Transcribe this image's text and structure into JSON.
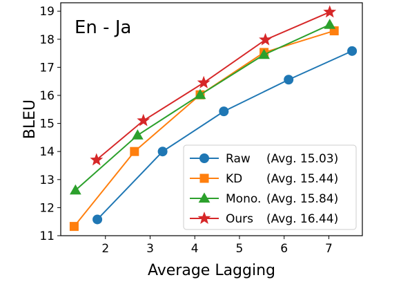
{
  "chart_data": {
    "type": "line",
    "title": "En - Ja",
    "xlabel": "Average Lagging",
    "ylabel": "BLEU",
    "xlim": [
      1,
      7.75
    ],
    "ylim": [
      11,
      19.3
    ],
    "xticks": [
      2,
      3,
      4,
      5,
      6,
      7
    ],
    "yticks": [
      11,
      12,
      13,
      14,
      15,
      16,
      17,
      18,
      19
    ],
    "grid": false,
    "legend_position": "lower-right",
    "series": [
      {
        "name": "Raw",
        "avg_label": "(Avg. 15.03)",
        "color": "#1f77b4",
        "marker": "circle",
        "x": [
          1.82,
          3.28,
          4.65,
          6.1,
          7.52
        ],
        "y": [
          11.58,
          14.0,
          15.43,
          16.56,
          17.58
        ]
      },
      {
        "name": "KD",
        "avg_label": "(Avg. 15.44)",
        "color": "#ff7f0e",
        "marker": "square",
        "x": [
          1.3,
          2.65,
          4.12,
          5.55,
          7.12
        ],
        "y": [
          11.33,
          14.0,
          16.02,
          17.53,
          18.3
        ]
      },
      {
        "name": "Mono.",
        "avg_label": "(Avg. 15.84)",
        "color": "#2ca02c",
        "marker": "triangle",
        "x": [
          1.33,
          2.72,
          4.12,
          5.55,
          7.02
        ],
        "y": [
          12.62,
          14.58,
          16.02,
          17.45,
          18.52
        ]
      },
      {
        "name": "Ours",
        "avg_label": "(Avg. 16.44)",
        "color": "#d62728",
        "marker": "star",
        "x": [
          1.8,
          2.85,
          4.2,
          5.58,
          7.02
        ],
        "y": [
          13.7,
          15.1,
          16.45,
          17.98,
          18.97
        ]
      }
    ]
  }
}
